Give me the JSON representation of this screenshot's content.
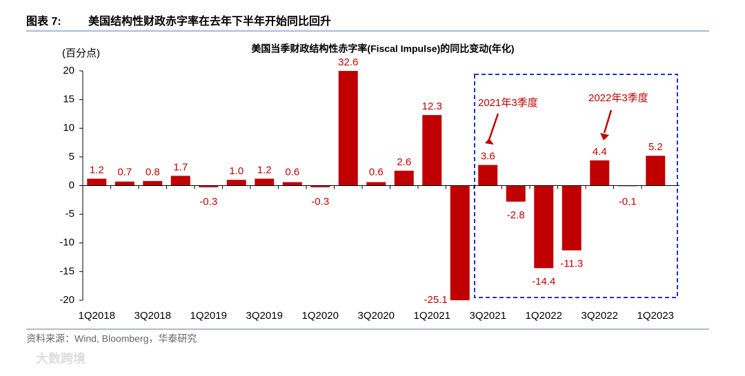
{
  "header": {
    "label": "图表 7:",
    "title": "美国结构性财政赤字率在去年下半年开始同比回升"
  },
  "chart_data": {
    "type": "bar",
    "title": "美国当季财政结构性赤字率(Fiscal Impulse)的同比变动(年化)",
    "y_label": "(百分点)",
    "categories": [
      "1Q2018",
      null,
      "3Q2018",
      null,
      "1Q2019",
      null,
      "3Q2019",
      null,
      "1Q2020",
      null,
      "3Q2020",
      null,
      "1Q2021",
      null,
      "3Q2021",
      null,
      "1Q2022",
      null,
      "3Q2022",
      null,
      "1Q2023"
    ],
    "values": [
      1.2,
      0.7,
      0.8,
      1.7,
      -0.3,
      1.0,
      1.2,
      0.6,
      -0.3,
      32.6,
      0.6,
      2.6,
      12.3,
      -25.1,
      3.6,
      -2.8,
      -14.4,
      -11.3,
      4.4,
      -0.1,
      5.2
    ],
    "value_labels": [
      "1.2",
      "0.7",
      "0.8",
      "1.7",
      "-0.3",
      "1.0",
      "1.2",
      "0.6",
      "-0.3",
      "32.6",
      "0.6",
      "2.6",
      "12.3",
      "-25.1",
      "3.6",
      "-2.8",
      "-14.4",
      "-11.3",
      "4.4",
      "-0.1",
      "5.2"
    ],
    "color": "#c00000",
    "ylim": [
      -20,
      20
    ],
    "yticks": [
      -20,
      -15,
      -10,
      -5,
      0,
      5,
      10,
      15,
      20
    ],
    "annotations": [
      "2021年3季度",
      "2022年3季度"
    ]
  },
  "source": "资料来源：Wind, Bloomberg，华泰研究",
  "watermark": "大数跨境"
}
